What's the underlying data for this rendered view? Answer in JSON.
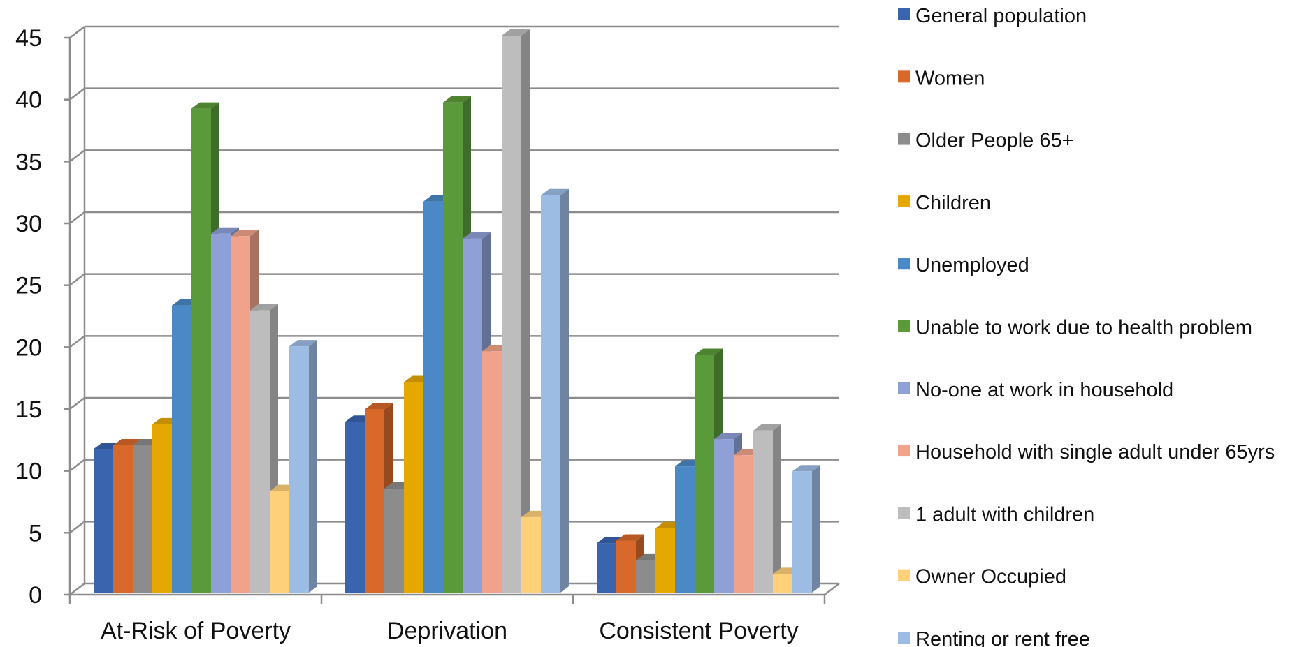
{
  "chart_data": {
    "type": "bar",
    "style": "3d-clustered-column",
    "categories": [
      "At-Risk of Poverty",
      "Deprivation",
      "Consistent Poverty"
    ],
    "ylim": [
      0,
      45
    ],
    "yticks": [
      0,
      5,
      10,
      15,
      20,
      25,
      30,
      35,
      40,
      45
    ],
    "grid": true,
    "legend_position": "right",
    "series": [
      {
        "name": "General population",
        "color": "#3A64AE",
        "values": [
          11.6,
          13.8,
          4.0
        ]
      },
      {
        "name": "Women",
        "color": "#D8692A",
        "values": [
          11.9,
          14.8,
          4.2
        ]
      },
      {
        "name": "Older People 65+",
        "color": "#8C8C8C",
        "values": [
          11.9,
          8.4,
          2.6
        ]
      },
      {
        "name": "Children",
        "color": "#E5A800",
        "values": [
          13.6,
          17.0,
          5.2
        ]
      },
      {
        "name": "Unemployed",
        "color": "#4A89C5",
        "values": [
          23.2,
          31.6,
          10.2
        ]
      },
      {
        "name": "Unable to work due to health problem",
        "color": "#5A9A3A",
        "values": [
          39.1,
          39.6,
          19.2
        ]
      },
      {
        "name": "No-one at work in household",
        "color": "#8EA0D6",
        "values": [
          29.0,
          28.6,
          12.4
        ]
      },
      {
        "name": "Household with single adult under 65yrs",
        "color": "#F0A38A",
        "values": [
          28.8,
          19.5,
          11.1
        ]
      },
      {
        "name": "1 adult with children",
        "color": "#BDBDBD",
        "values": [
          22.8,
          45.0,
          13.1
        ]
      },
      {
        "name": "Owner Occupied",
        "color": "#FFD07A",
        "values": [
          8.2,
          6.1,
          1.5
        ]
      },
      {
        "name": "Renting or rent free",
        "color": "#9DBCE4",
        "values": [
          19.9,
          32.1,
          9.8
        ]
      }
    ]
  }
}
